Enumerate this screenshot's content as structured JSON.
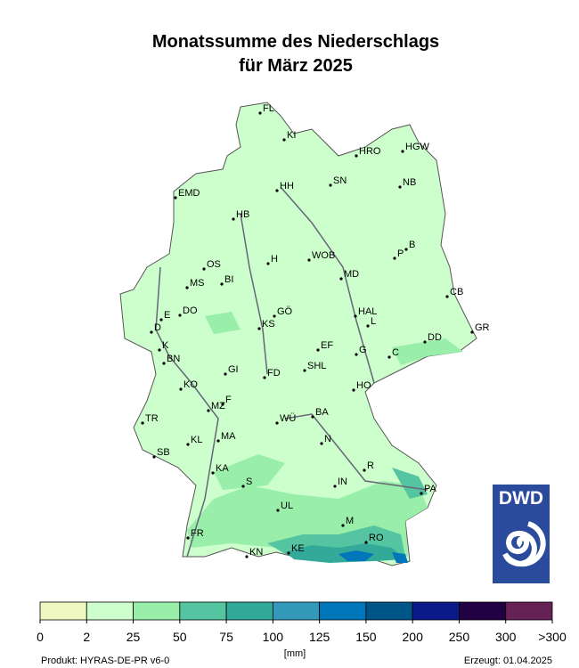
{
  "title": [
    "Monatssumme des Niederschlags",
    "für März 2025"
  ],
  "cities": [
    "FL",
    "KI",
    "HRO",
    "HGW",
    "SN",
    "NB",
    "EMD",
    "HH",
    "HB",
    "B",
    "P",
    "OS",
    "H",
    "WOB",
    "MS",
    "BI",
    "MD",
    "CB",
    "DO",
    "E",
    "GÖ",
    "HAL",
    "L",
    "GR",
    "D",
    "KS",
    "DD",
    "K",
    "EF",
    "G",
    "C",
    "BN",
    "GI",
    "SHL",
    "FD",
    "KO",
    "HO",
    "F",
    "MZ",
    "WÜ",
    "BA",
    "TR",
    "KL",
    "MA",
    "N",
    "SB",
    "R",
    "KA",
    "S",
    "IN",
    "PA",
    "UL",
    "M",
    "FR",
    "RO",
    "KN",
    "KE"
  ],
  "legend": {
    "labels": [
      "0",
      "2",
      "25",
      "50",
      "75",
      "100",
      "125",
      "150",
      "200",
      "250",
      "300",
      ">300"
    ],
    "colors": [
      "#eef8c0",
      "#ccffcc",
      "#99eeaa",
      "#55c4a0",
      "#33aa99",
      "#3399bb",
      "#0077bb",
      "#005588",
      "#0a1a88",
      "#220044",
      "#662255"
    ],
    "unit": "[mm]"
  },
  "footer": {
    "product": "Produkt: HYRAS-DE-PR v6-0",
    "created": "Erzeugt: 01.04.2025"
  },
  "logo": "DWD"
}
